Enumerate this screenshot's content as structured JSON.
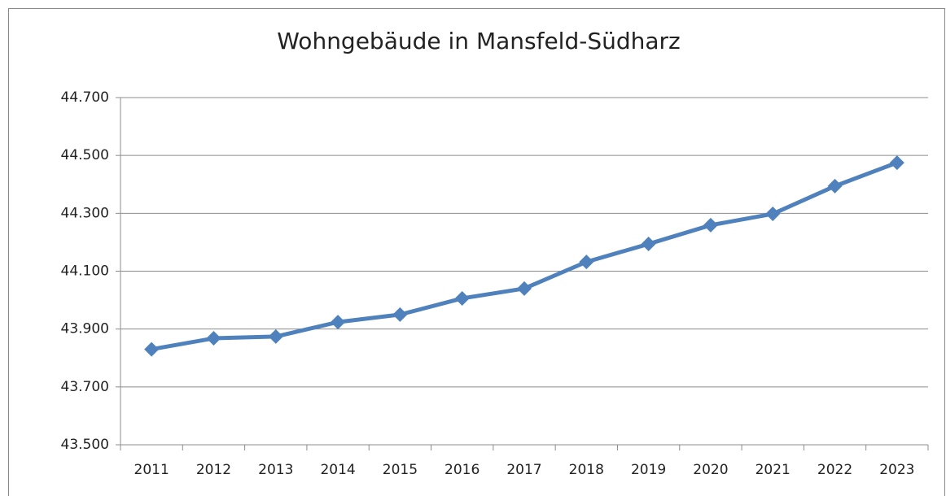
{
  "chart_data": {
    "type": "line",
    "title": "Wohngebäude in Mansfeld-Südharz",
    "categories": [
      "2011",
      "2012",
      "2013",
      "2014",
      "2015",
      "2016",
      "2017",
      "2018",
      "2019",
      "2020",
      "2021",
      "2022",
      "2023"
    ],
    "series": [
      {
        "name": "Wohngebäude",
        "color": "#4f81bd",
        "values": [
          43830,
          43868,
          43874,
          43924,
          43950,
          44006,
          44040,
          44132,
          44194,
          44259,
          44298,
          44394,
          44475
        ]
      }
    ],
    "ylim": [
      43500,
      44700
    ],
    "yticks": [
      {
        "value": 43500,
        "label": "43.500"
      },
      {
        "value": 43700,
        "label": "43.700"
      },
      {
        "value": 43900,
        "label": "43.900"
      },
      {
        "value": 44100,
        "label": "44.100"
      },
      {
        "value": 44300,
        "label": "44.300"
      },
      {
        "value": 44500,
        "label": "44.500"
      },
      {
        "value": 44700,
        "label": "44.700"
      }
    ],
    "grid": true
  }
}
